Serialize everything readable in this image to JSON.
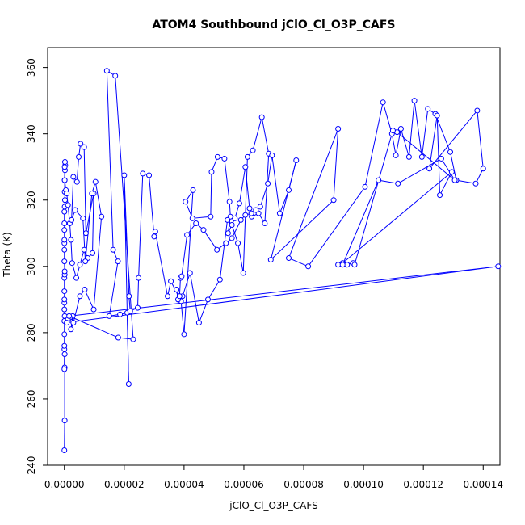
{
  "chart_data": {
    "type": "line",
    "title": "ATOM4 Southbound jClO_Cl_O3P_CAFS",
    "xlabel": "jClO_Cl_O3P_CAFS",
    "ylabel": "Theta (K)",
    "xlim": [
      -5.6e-06,
      0.0001456
    ],
    "ylim": [
      240,
      366
    ],
    "xticks": [
      0,
      2e-05,
      4e-05,
      6e-05,
      8e-05,
      0.0001,
      0.00012,
      0.00014
    ],
    "xtick_labels": [
      "0.00000",
      "0.00002",
      "0.00004",
      "0.00006",
      "0.00008",
      "0.00010",
      "0.00012",
      "0.00014"
    ],
    "yticks": [
      240,
      260,
      280,
      300,
      320,
      340,
      360
    ],
    "ytick_labels": [
      "240",
      "260",
      "280",
      "300",
      "320",
      "340",
      "360"
    ],
    "grid": false,
    "series_color": "#0000ff",
    "series": [
      {
        "x": [
          0,
          1e-07,
          1e-07,
          1e-07,
          0,
          0,
          0,
          0,
          0,
          1e-07,
          0,
          0,
          0,
          0,
          0,
          1e-07,
          1e-07,
          0,
          0,
          0,
          0,
          0,
          0,
          0,
          1e-07,
          2e-07,
          1e-07,
          1e-07,
          2e-07,
          3e-07,
          2e-07,
          1e-07,
          1e-07,
          5e-07,
          8e-07,
          1.2e-06,
          1.8e-06,
          2.2e-06,
          2.6e-06,
          4e-06,
          5.2e-06,
          6.6e-06,
          7.8e-06,
          9.4e-06,
          9.8e-06,
          7.2e-06,
          6.6e-06,
          5.4e-06,
          4.8e-06,
          4.2e-06,
          3e-06,
          2.4e-06,
          3.6e-06,
          6.2e-06,
          7e-06,
          9.2e-06,
          1.04e-05,
          1.24e-05,
          9.8e-06,
          6.8e-06,
          5.2e-06,
          3e-06,
          2.2e-06,
          2.8e-06,
          1.8e-06,
          1.2e-06,
          8e-07,
          0.000145,
          1.6e-06,
          1.8e-05,
          2.3e-05,
          1.7e-05,
          1.42e-05,
          1.63e-05,
          1.79e-05,
          1.5e-05,
          1.86e-05,
          2.1e-05,
          2.15e-05,
          2e-05,
          2.16e-05,
          2.2e-05,
          2.45e-05,
          2.48e-05,
          2.62e-05,
          2.83e-05,
          3e-05,
          3.04e-05,
          3.45e-05,
          3.56e-05,
          3.9e-05,
          4e-05,
          4.3e-05,
          4.05e-05,
          4.28e-05,
          4.89e-05,
          4.92e-05,
          5.12e-05,
          5.35e-05,
          5.52e-05,
          5.55e-05,
          5.47e-05,
          5.7e-05,
          5.85e-05,
          6.05e-05,
          6.19e-05,
          6.26e-05,
          6.49e-05,
          6.7e-05,
          6.83e-05,
          6.6e-05,
          6.3e-05,
          6.12e-05,
          5.98e-05,
          5.8e-05,
          5.6e-05,
          5.45e-05,
          5.2e-05,
          4.8e-05,
          4.5e-05,
          4.2e-05,
          3.95e-05,
          3.8e-05,
          3.75e-05,
          3.85e-05,
          3.88e-05,
          3.92e-05,
          4.1e-05,
          4.4e-05,
          4.65e-05,
          5.1e-05,
          5.4e-05,
          5.6e-05,
          5.9e-05,
          6.05e-05,
          6.25e-05,
          6.4e-05,
          6.55e-05,
          6.8e-05,
          6.94e-05,
          7.2e-05,
          7.5e-05,
          7.75e-05,
          6.9e-05,
          9e-05,
          9.15e-05,
          7.5e-05,
          8.15e-05,
          0.0001005,
          0.0001065,
          0.0001095,
          0.0001108,
          0.0001125,
          0.0001152,
          0.000117,
          0.0001195,
          0.0001215,
          0.000124,
          0.000129,
          0.000131,
          0.0001375,
          0.00014,
          0.000138,
          0.000122,
          0.0001246,
          0.0001255,
          0.0001295,
          9.3e-05,
          9.45e-05,
          9.65e-05,
          9.15e-05,
          9.3e-05,
          0.000105,
          0.0001115,
          0.000126,
          0.0001305,
          0.0001112,
          0.0001098,
          9.7e-05
        ],
        "y": [
          244.5,
          253.5,
          269.5,
          273.5,
          269,
          275,
          276,
          279.5,
          283.5,
          285,
          287,
          289,
          290,
          292.5,
          296.5,
          297.5,
          298.5,
          301.5,
          305,
          307,
          308,
          311,
          313,
          316.5,
          318,
          320,
          322.5,
          326,
          329,
          330.5,
          331.5,
          330,
          326,
          323,
          322,
          318.5,
          313,
          308,
          301,
          296.5,
          300.5,
          305,
          302.5,
          304,
          322,
          310,
          336,
          337,
          333,
          325.5,
          327,
          314,
          317,
          314.5,
          301.5,
          322,
          325.5,
          315,
          287,
          293,
          291,
          283,
          281,
          285,
          284.5,
          284,
          283,
          300,
          285,
          278.5,
          278,
          357.5,
          359,
          305,
          301.5,
          285,
          285.5,
          286,
          264.5,
          327.5,
          291,
          286.5,
          287.5,
          296.5,
          328,
          327.5,
          309,
          310.5,
          291,
          295.5,
          289.5,
          279.5,
          323,
          319.5,
          314.5,
          315,
          328.5,
          333,
          332.5,
          319.5,
          315,
          310,
          314.5,
          319,
          330,
          317.5,
          315,
          316,
          313,
          334,
          345,
          335,
          333,
          298,
          307,
          312.5,
          314,
          296,
          290,
          283,
          298,
          291,
          290,
          293,
          291,
          296.5,
          297,
          309.5,
          313,
          311,
          305,
          307,
          308.5,
          314,
          315.5,
          316,
          317,
          318,
          325,
          333.5,
          316,
          323,
          332,
          302,
          320,
          341.5,
          302.5,
          300,
          324,
          349.5,
          340,
          333.5,
          341.5,
          333,
          350,
          333,
          347.5,
          346,
          334.5,
          326,
          325,
          329.5,
          347,
          329.5,
          345.5,
          321.5,
          328.5,
          301,
          300.5,
          301,
          300.5,
          300.5,
          326,
          325,
          332.5,
          326,
          340.5,
          341,
          300.5
        ]
      }
    ]
  }
}
